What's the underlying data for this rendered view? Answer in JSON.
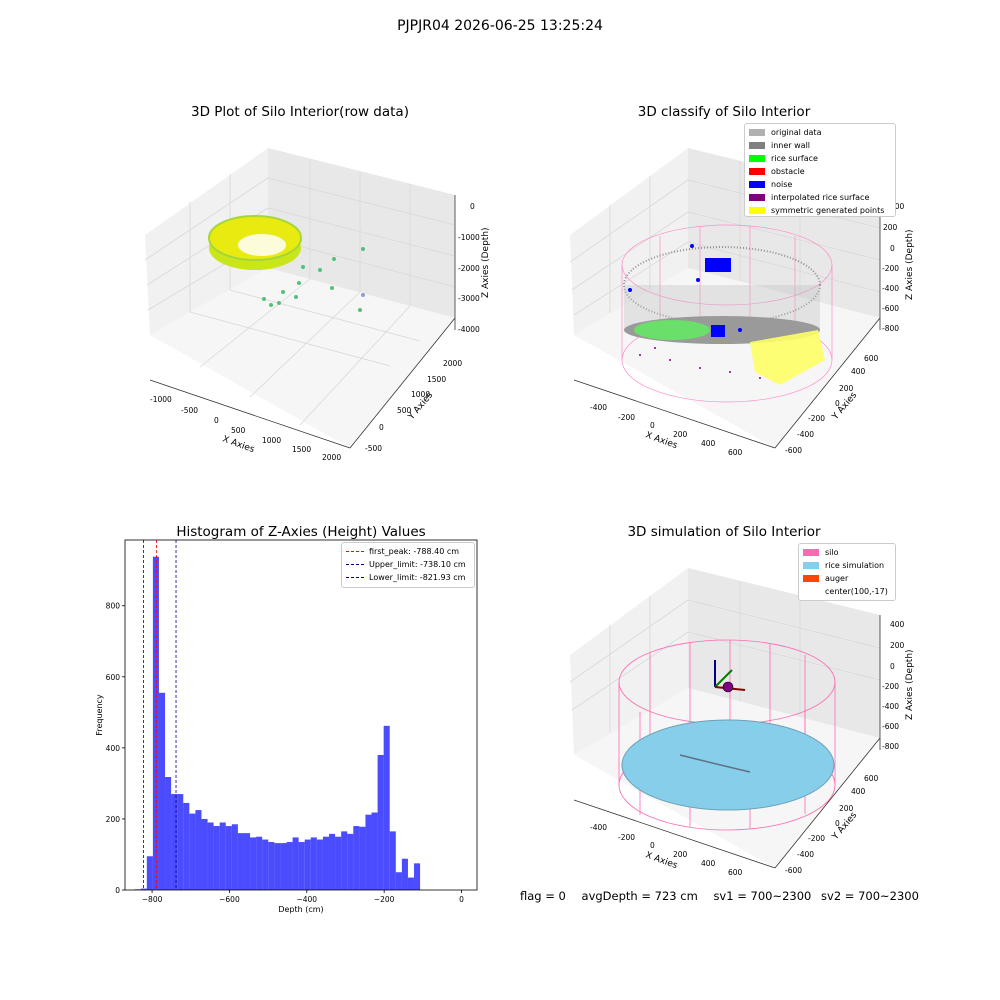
{
  "suptitle": "PJPJR04 2026-06-25 13:25:24",
  "panels": {
    "raw": {
      "title": "3D Plot of Silo Interior(row data)",
      "xlabel": "X Axies",
      "ylabel": "Y Axies",
      "zlabel": "Z Axies (Depth)",
      "x_ticks": [
        "-1000",
        "-500",
        "0",
        "500",
        "1000",
        "1500",
        "2000"
      ],
      "y_ticks": [
        "-500",
        "0",
        "500",
        "1000",
        "1500",
        "2000"
      ],
      "z_ticks": [
        "0",
        "-1000",
        "-2000",
        "-3000",
        "-4000"
      ]
    },
    "classify": {
      "title": "3D classify of Silo Interior",
      "xlabel": "X Axies",
      "ylabel": "Y Axies",
      "zlabel": "Z Axies (Depth)",
      "x_ticks": [
        "-400",
        "-200",
        "0",
        "200",
        "400",
        "600"
      ],
      "y_ticks": [
        "-600",
        "-400",
        "-200",
        "0",
        "200",
        "400",
        "600"
      ],
      "z_ticks": [
        "200",
        "0",
        "-200",
        "-400",
        "-600",
        "-800"
      ],
      "legend": [
        {
          "label": "original data",
          "color": "#b0b0b0"
        },
        {
          "label": "inner wall",
          "color": "#808080"
        },
        {
          "label": "rice surface",
          "color": "#00ff00"
        },
        {
          "label": "obstacle",
          "color": "#ff0000"
        },
        {
          "label": "noise",
          "color": "#0000ff"
        },
        {
          "label": "interpolated rice surface",
          "color": "#800080"
        },
        {
          "label": "symmetric generated points",
          "color": "#ffff00"
        }
      ]
    },
    "simulation": {
      "title": "3D simulation of Silo Interior",
      "xlabel": "X Axies",
      "ylabel": "Y Axies",
      "zlabel": "Z Axies (Depth)",
      "x_ticks": [
        "-400",
        "-200",
        "0",
        "200",
        "400",
        "600"
      ],
      "y_ticks": [
        "-600",
        "-400",
        "-200",
        "0",
        "200",
        "400",
        "600"
      ],
      "z_ticks": [
        "400",
        "200",
        "0",
        "-200",
        "-400",
        "-600",
        "-800"
      ],
      "legend": [
        {
          "label": "silo",
          "color": "#ff69b4"
        },
        {
          "label": "rice simulation",
          "color": "#87ceeb"
        },
        {
          "label": "auger",
          "color": "#ff4500"
        },
        {
          "label": "center(100,-17)",
          "color": ""
        }
      ]
    }
  },
  "chart_data": {
    "type": "bar",
    "title": "Histogram of Z-Axies (Height) Values",
    "xlabel": "Depth (cm)",
    "ylabel": "Frequency",
    "xlim": [
      -870,
      40
    ],
    "ylim": [
      0,
      985
    ],
    "x_ticks": [
      -800,
      -600,
      -400,
      -200,
      0
    ],
    "y_ticks": [
      0,
      200,
      400,
      600,
      800
    ],
    "bar_color": "#0000ff",
    "bin_start": -845,
    "bin_width": 15.7,
    "values": [
      2,
      4,
      95,
      938,
      555,
      318,
      270,
      270,
      245,
      215,
      225,
      200,
      190,
      180,
      190,
      180,
      185,
      160,
      160,
      148,
      150,
      142,
      135,
      132,
      132,
      135,
      148,
      135,
      142,
      148,
      142,
      150,
      158,
      150,
      165,
      158,
      180,
      178,
      212,
      218,
      380,
      462,
      165,
      50,
      88,
      35,
      75
    ],
    "lines": [
      {
        "label": "first_peak: -788.40 cm",
        "x": -788.4,
        "color": "#ff0000"
      },
      {
        "label": "Upper_limit: -738.10 cm",
        "x": -738.1,
        "color": "#00008b"
      },
      {
        "label": "Lower_limit: -821.93 cm",
        "x": -821.93,
        "color": "#00008b"
      }
    ],
    "legend_position": "upper right"
  },
  "footer": {
    "flag": "flag = 0",
    "avg_depth": "avgDepth = 723 cm",
    "sv1": "sv1 = 700~2300",
    "sv2": "sv2 = 700~2300"
  }
}
